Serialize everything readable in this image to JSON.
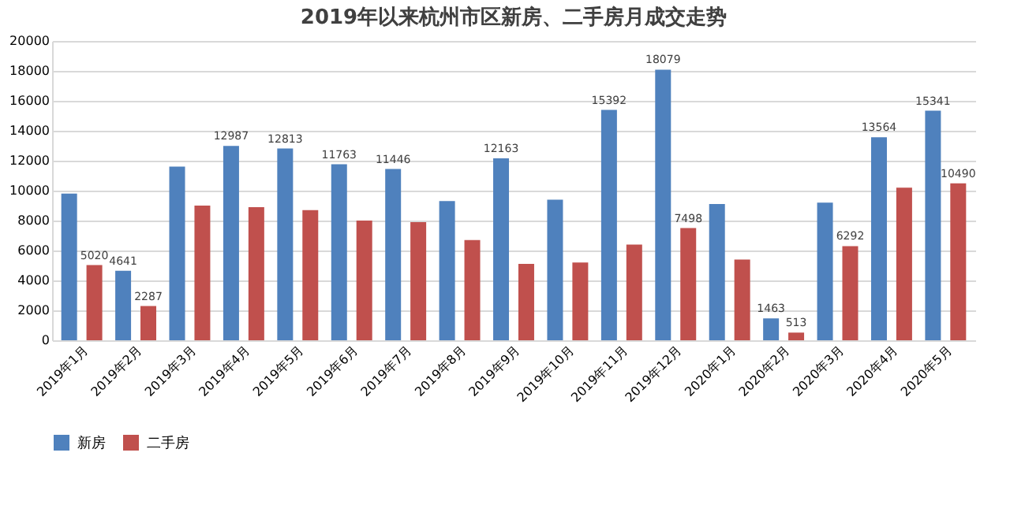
{
  "chart_data": {
    "type": "bar",
    "title": "2019年以来杭州市区新房、二手房月成交走势",
    "categories": [
      "2019年1月",
      "2019年2月",
      "2019年3月",
      "2019年4月",
      "2019年5月",
      "2019年6月",
      "2019年7月",
      "2019年8月",
      "2019年9月",
      "2019年10月",
      "2019年11月",
      "2019年12月",
      "2020年1月",
      "2020年2月",
      "2020年3月",
      "2020年4月",
      "2020年5月"
    ],
    "series": [
      {
        "name": "新房",
        "color": "#4f81bd",
        "values": [
          9800,
          4641,
          11600,
          12987,
          12813,
          11763,
          11446,
          9300,
          12163,
          9400,
          15392,
          18079,
          9100,
          1463,
          9200,
          13564,
          15341
        ],
        "value_labels": [
          null,
          "4641",
          null,
          "12987",
          "12813",
          "11763",
          "11446",
          null,
          "12163",
          null,
          "15392",
          "18079",
          null,
          "1463",
          null,
          "13564",
          "15341"
        ]
      },
      {
        "name": "二手房",
        "color": "#c0504d",
        "values": [
          5020,
          2287,
          9000,
          8900,
          8700,
          8000,
          7900,
          6700,
          5100,
          5200,
          6400,
          7498,
          5400,
          513,
          6292,
          10200,
          10490
        ],
        "value_labels": [
          "5020",
          "2287",
          null,
          null,
          null,
          null,
          null,
          null,
          null,
          null,
          null,
          "7498",
          null,
          "513",
          "6292",
          null,
          "10490"
        ]
      }
    ],
    "ylim": [
      0,
      20000
    ],
    "yticks": [
      0,
      2000,
      4000,
      6000,
      8000,
      10000,
      12000,
      14000,
      16000,
      18000,
      20000
    ],
    "grid": "y",
    "legend": "bottom"
  }
}
